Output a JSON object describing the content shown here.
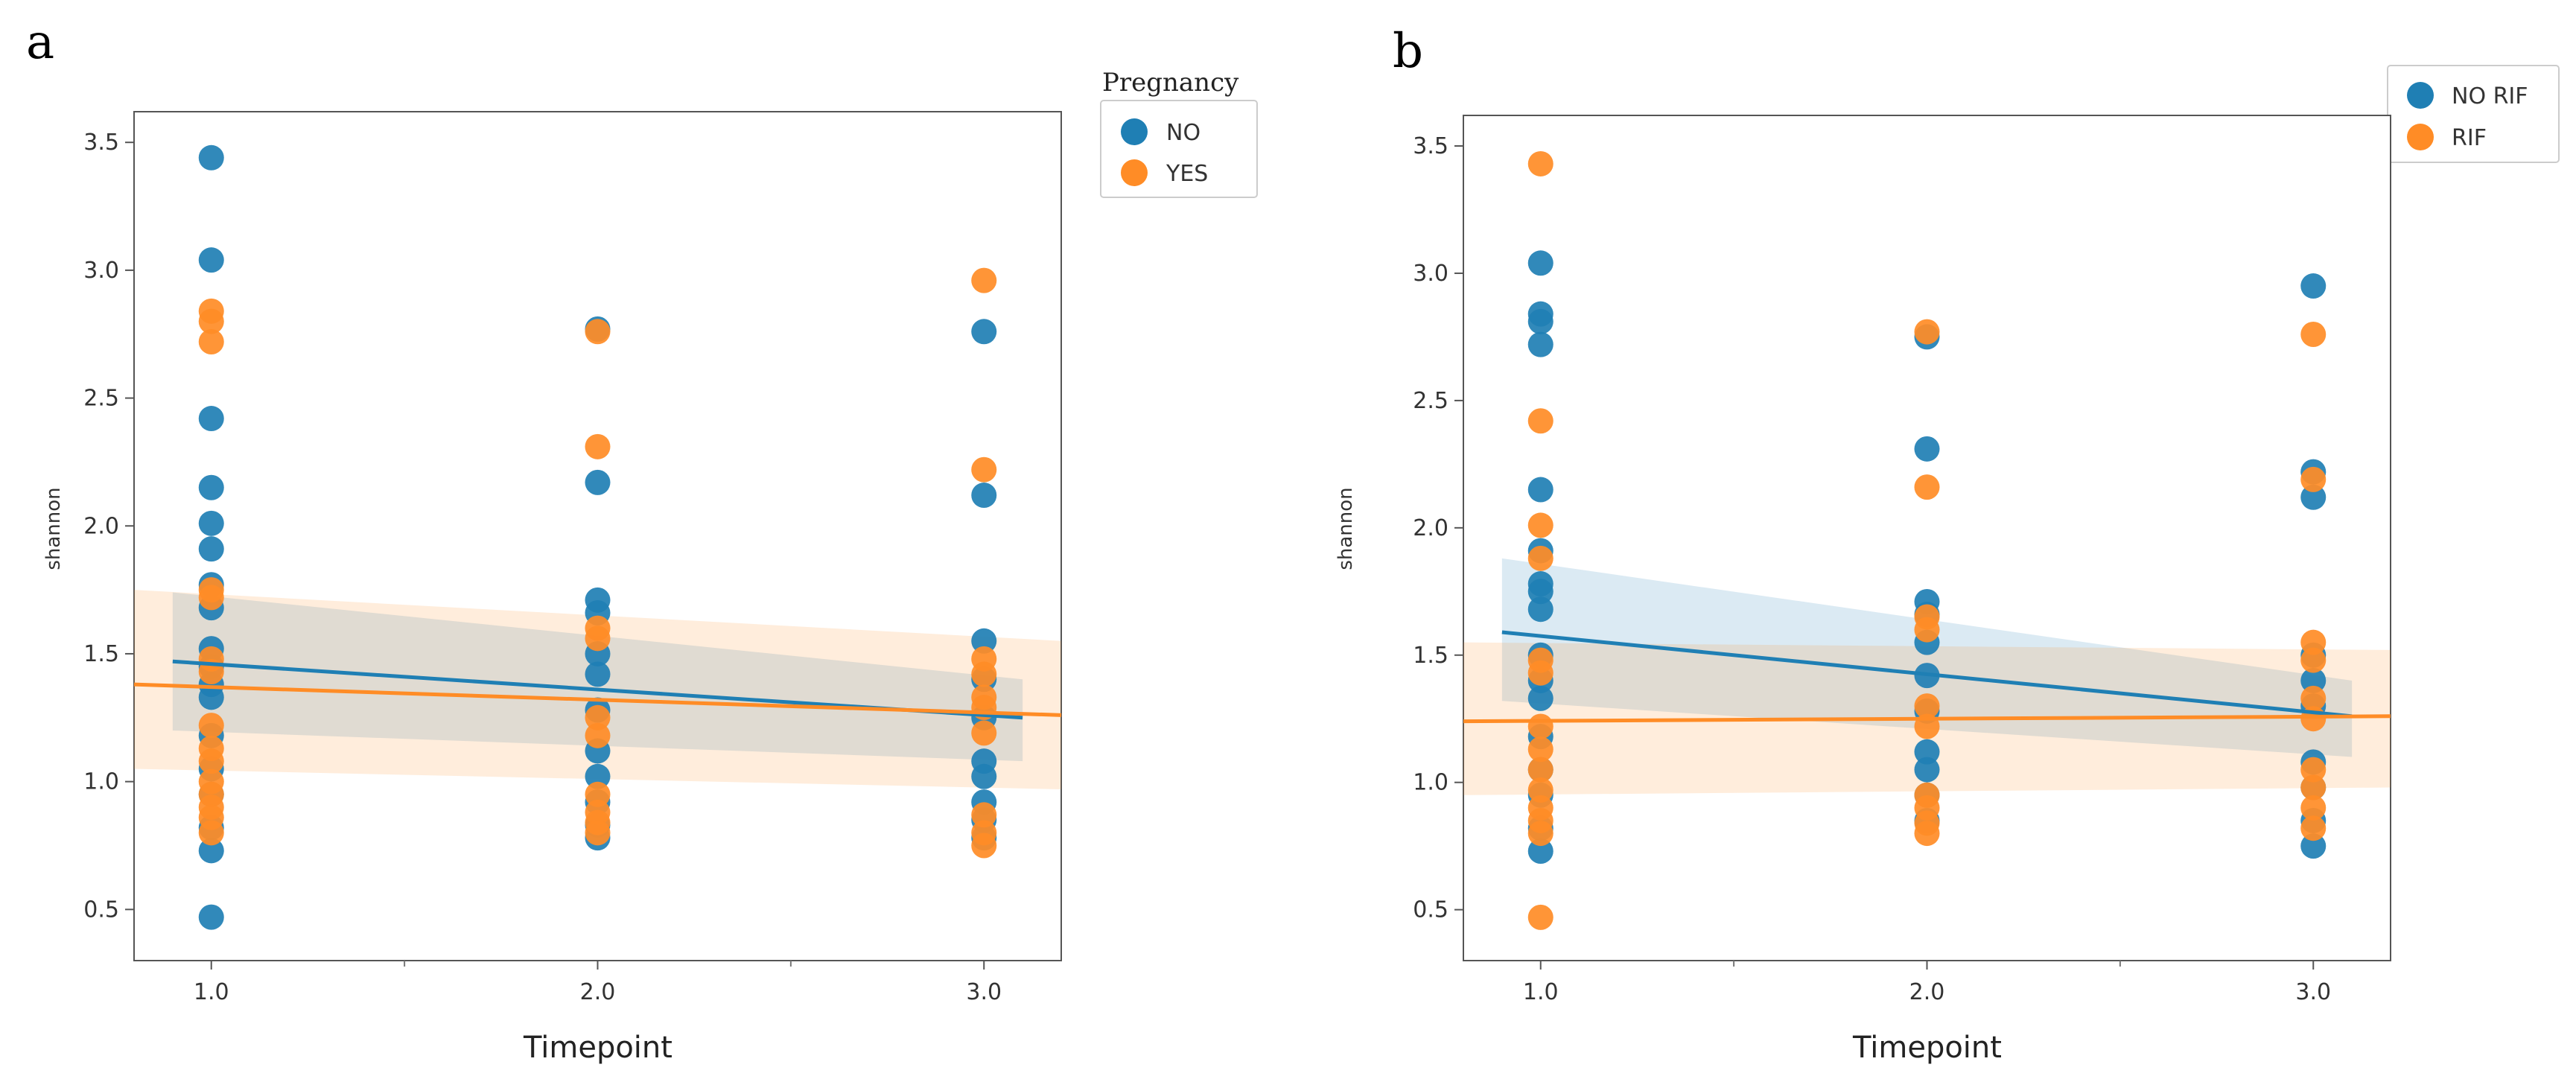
{
  "chart_data": [
    {
      "type": "scatter",
      "panel_label": "a",
      "xlabel": "Timepoint",
      "ylabel": "shannon",
      "xticks": [
        "1.0",
        "2.0",
        "3.0"
      ],
      "xlim": [
        0.8,
        3.2
      ],
      "yticks": [
        "0.5",
        "1.0",
        "1.5",
        "2.0",
        "2.5",
        "3.0",
        "3.5"
      ],
      "ylim": [
        0.3,
        3.62
      ],
      "legend": {
        "title": "Pregnancy",
        "placement": "outside-top-right"
      },
      "series": [
        {
          "name": "NO",
          "color": "#1f7fb4",
          "points": [
            [
              1,
              3.44
            ],
            [
              1,
              3.04
            ],
            [
              1,
              2.42
            ],
            [
              1,
              2.15
            ],
            [
              1,
              2.01
            ],
            [
              1,
              1.91
            ],
            [
              1,
              1.77
            ],
            [
              1,
              1.68
            ],
            [
              1,
              1.52
            ],
            [
              1,
              1.45
            ],
            [
              1,
              1.38
            ],
            [
              1,
              1.33
            ],
            [
              1,
              1.18
            ],
            [
              1,
              1.05
            ],
            [
              1,
              0.95
            ],
            [
              1,
              0.82
            ],
            [
              1,
              0.73
            ],
            [
              1,
              0.47
            ],
            [
              2,
              2.77
            ],
            [
              2,
              2.17
            ],
            [
              2,
              1.71
            ],
            [
              2,
              1.66
            ],
            [
              2,
              1.5
            ],
            [
              2,
              1.42
            ],
            [
              2,
              1.28
            ],
            [
              2,
              1.12
            ],
            [
              2,
              1.02
            ],
            [
              2,
              0.92
            ],
            [
              2,
              0.83
            ],
            [
              2,
              0.78
            ],
            [
              3,
              2.76
            ],
            [
              3,
              2.12
            ],
            [
              3,
              1.55
            ],
            [
              3,
              1.4
            ],
            [
              3,
              1.25
            ],
            [
              3,
              1.08
            ],
            [
              3,
              1.02
            ],
            [
              3,
              0.92
            ],
            [
              3,
              0.85
            ],
            [
              3,
              0.78
            ]
          ],
          "regression": {
            "x": [
              0.9,
              3.1
            ],
            "y": [
              1.47,
              1.25
            ]
          },
          "ci_band": {
            "x": [
              0.9,
              3.1
            ],
            "upper": [
              1.74,
              1.4
            ],
            "lower": [
              1.2,
              1.08
            ]
          }
        },
        {
          "name": "YES",
          "color": "#ff8c26",
          "points": [
            [
              1,
              2.84
            ],
            [
              1,
              2.8
            ],
            [
              1,
              2.72
            ],
            [
              1,
              1.75
            ],
            [
              1,
              1.72
            ],
            [
              1,
              1.48
            ],
            [
              1,
              1.43
            ],
            [
              1,
              1.22
            ],
            [
              1,
              1.13
            ],
            [
              1,
              1.08
            ],
            [
              1,
              1.0
            ],
            [
              1,
              0.95
            ],
            [
              1,
              0.9
            ],
            [
              1,
              0.86
            ],
            [
              1,
              0.8
            ],
            [
              2,
              2.76
            ],
            [
              2,
              2.31
            ],
            [
              2,
              1.6
            ],
            [
              2,
              1.56
            ],
            [
              2,
              1.25
            ],
            [
              2,
              1.18
            ],
            [
              2,
              0.95
            ],
            [
              2,
              0.88
            ],
            [
              2,
              0.84
            ],
            [
              2,
              0.8
            ],
            [
              3,
              2.96
            ],
            [
              3,
              2.22
            ],
            [
              3,
              1.48
            ],
            [
              3,
              1.42
            ],
            [
              3,
              1.33
            ],
            [
              3,
              1.29
            ],
            [
              3,
              1.19
            ],
            [
              3,
              0.87
            ],
            [
              3,
              0.8
            ],
            [
              3,
              0.75
            ]
          ],
          "regression": {
            "x": [
              0.8,
              3.2
            ],
            "y": [
              1.38,
              1.26
            ]
          },
          "ci_band": {
            "x": [
              0.8,
              3.2
            ],
            "upper": [
              1.75,
              1.55
            ],
            "lower": [
              1.05,
              0.97
            ]
          }
        }
      ]
    },
    {
      "type": "scatter",
      "panel_label": "b",
      "xlabel": "Timepoint",
      "ylabel": "shannon",
      "xticks": [
        "1.0",
        "2.0",
        "3.0"
      ],
      "xlim": [
        0.8,
        3.2
      ],
      "yticks": [
        "0.5",
        "1.0",
        "1.5",
        "2.0",
        "2.5",
        "3.0",
        "3.5"
      ],
      "ylim": [
        0.3,
        3.62
      ],
      "legend": {
        "title": "",
        "placement": "outside-top-right"
      },
      "series": [
        {
          "name": "NO RIF",
          "color": "#1f7fb4",
          "points": [
            [
              1,
              3.04
            ],
            [
              1,
              2.84
            ],
            [
              1,
              2.81
            ],
            [
              1,
              2.72
            ],
            [
              1,
              2.15
            ],
            [
              1,
              1.91
            ],
            [
              1,
              1.78
            ],
            [
              1,
              1.75
            ],
            [
              1,
              1.68
            ],
            [
              1,
              1.5
            ],
            [
              1,
              1.4
            ],
            [
              1,
              1.33
            ],
            [
              1,
              1.18
            ],
            [
              1,
              1.05
            ],
            [
              1,
              0.95
            ],
            [
              1,
              0.82
            ],
            [
              1,
              0.73
            ],
            [
              2,
              2.75
            ],
            [
              2,
              2.31
            ],
            [
              2,
              1.71
            ],
            [
              2,
              1.66
            ],
            [
              2,
              1.55
            ],
            [
              2,
              1.42
            ],
            [
              2,
              1.28
            ],
            [
              2,
              1.12
            ],
            [
              2,
              1.05
            ],
            [
              2,
              0.95
            ],
            [
              2,
              0.85
            ],
            [
              3,
              2.95
            ],
            [
              3,
              2.22
            ],
            [
              3,
              2.12
            ],
            [
              3,
              1.5
            ],
            [
              3,
              1.4
            ],
            [
              3,
              1.3
            ],
            [
              3,
              1.08
            ],
            [
              3,
              0.98
            ],
            [
              3,
              0.85
            ],
            [
              3,
              0.75
            ]
          ],
          "regression": {
            "x": [
              0.9,
              3.1
            ],
            "y": [
              1.59,
              1.26
            ]
          },
          "ci_band": {
            "x": [
              0.9,
              3.1
            ],
            "upper": [
              1.88,
              1.4
            ],
            "lower": [
              1.32,
              1.1
            ]
          }
        },
        {
          "name": "RIF",
          "color": "#ff8c26",
          "points": [
            [
              1,
              3.43
            ],
            [
              1,
              2.42
            ],
            [
              1,
              2.01
            ],
            [
              1,
              1.88
            ],
            [
              1,
              1.48
            ],
            [
              1,
              1.43
            ],
            [
              1,
              1.22
            ],
            [
              1,
              1.13
            ],
            [
              1,
              1.05
            ],
            [
              1,
              0.97
            ],
            [
              1,
              0.9
            ],
            [
              1,
              0.85
            ],
            [
              1,
              0.8
            ],
            [
              1,
              0.47
            ],
            [
              2,
              2.77
            ],
            [
              2,
              2.16
            ],
            [
              2,
              1.65
            ],
            [
              2,
              1.6
            ],
            [
              2,
              1.3
            ],
            [
              2,
              1.22
            ],
            [
              2,
              0.95
            ],
            [
              2,
              0.9
            ],
            [
              2,
              0.84
            ],
            [
              2,
              0.8
            ],
            [
              3,
              2.76
            ],
            [
              3,
              2.19
            ],
            [
              3,
              1.55
            ],
            [
              3,
              1.48
            ],
            [
              3,
              1.33
            ],
            [
              3,
              1.25
            ],
            [
              3,
              1.05
            ],
            [
              3,
              0.98
            ],
            [
              3,
              0.9
            ],
            [
              3,
              0.82
            ]
          ],
          "regression": {
            "x": [
              0.8,
              3.2
            ],
            "y": [
              1.24,
              1.26
            ]
          },
          "ci_band": {
            "x": [
              0.8,
              3.2
            ],
            "upper": [
              1.55,
              1.52
            ],
            "lower": [
              0.95,
              0.98
            ]
          }
        }
      ]
    }
  ]
}
